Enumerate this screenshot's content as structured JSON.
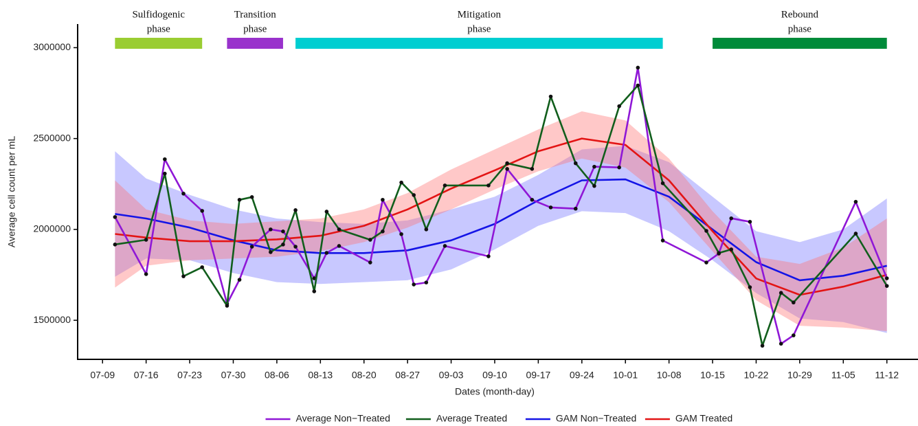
{
  "chart_data": {
    "type": "line",
    "x_label": "Dates (month-day)",
    "y_label": "Average cell count per mL",
    "xlim": [
      "07-05",
      "11-17"
    ],
    "xticks": [
      "07-09",
      "07-16",
      "07-23",
      "07-30",
      "08-06",
      "08-13",
      "08-20",
      "08-27",
      "09-03",
      "09-10",
      "09-17",
      "09-24",
      "10-01",
      "10-08",
      "10-15",
      "10-22",
      "10-29",
      "11-05",
      "11-12"
    ],
    "ylim": [
      1285000,
      3130000
    ],
    "yticks": [
      1500000,
      2000000,
      2500000,
      3000000
    ],
    "legend": "bottom",
    "phases": [
      {
        "label": [
          "Sulfidogenic",
          "phase"
        ],
        "start": "07-11",
        "end": "07-25",
        "color": "#9acd32"
      },
      {
        "label": [
          "Transition",
          "phase"
        ],
        "start": "07-29",
        "end": "08-07",
        "color": "#9932cc"
      },
      {
        "label": [
          "Mitigation",
          "phase"
        ],
        "start": "08-09",
        "end": "10-07",
        "color": "#00ced1"
      },
      {
        "label": [
          "Rebound",
          "phase"
        ],
        "start": "10-15",
        "end": "11-12",
        "color": "#008b3a"
      }
    ],
    "series": [
      {
        "name": "Average Non−Treated",
        "color": "#8f17d6",
        "points": true,
        "x": [
          "07-11",
          "07-16",
          "07-19",
          "07-22",
          "07-25",
          "07-29",
          "07-31",
          "08-02",
          "08-05",
          "08-07",
          "08-09",
          "08-12",
          "08-14",
          "08-16",
          "08-21",
          "08-23",
          "08-26",
          "08-28",
          "08-30",
          "09-02",
          "09-09",
          "09-12",
          "09-16",
          "09-19",
          "09-23",
          "09-26",
          "09-30",
          "10-03",
          "10-07",
          "10-14",
          "10-16",
          "10-18",
          "10-21",
          "10-26",
          "10-28",
          "11-07",
          "11-12"
        ],
        "values": [
          2068000,
          1754000,
          2386000,
          2197000,
          2102000,
          1591000,
          1723000,
          1905000,
          2000000,
          1989000,
          1905000,
          1731000,
          1871000,
          1909000,
          1818000,
          2163000,
          1974000,
          1697000,
          1708000,
          1909000,
          1852000,
          2333000,
          2163000,
          2121000,
          2114000,
          2345000,
          2341000,
          2890000,
          1939000,
          1818000,
          1867000,
          2061000,
          2042000,
          1371000,
          1417000,
          2152000,
          1731000
        ]
      },
      {
        "name": "Average Treated",
        "color": "#115e1c",
        "points": true,
        "x": [
          "07-11",
          "07-16",
          "07-19",
          "07-22",
          "07-25",
          "07-29",
          "07-31",
          "08-02",
          "08-05",
          "08-07",
          "08-09",
          "08-12",
          "08-14",
          "08-16",
          "08-21",
          "08-23",
          "08-26",
          "08-28",
          "08-30",
          "09-02",
          "09-09",
          "09-12",
          "09-16",
          "09-19",
          "09-23",
          "09-26",
          "09-30",
          "10-03",
          "10-07",
          "10-14",
          "10-16",
          "10-18",
          "10-21",
          "10-23",
          "10-26",
          "10-28",
          "11-07",
          "11-12"
        ],
        "values": [
          1917000,
          1943000,
          2307000,
          1742000,
          1792000,
          1580000,
          2163000,
          2178000,
          1875000,
          1917000,
          2106000,
          1659000,
          2098000,
          2000000,
          1943000,
          1989000,
          2258000,
          2189000,
          2000000,
          2242000,
          2242000,
          2364000,
          2333000,
          2731000,
          2364000,
          2239000,
          2678000,
          2792000,
          2254000,
          1992000,
          1870000,
          1890000,
          1682000,
          1360000,
          1651000,
          1598000,
          1977000,
          1689000
        ]
      },
      {
        "name": "GAM Non−Treated",
        "color": "#1414e6",
        "band_color": "rgba(110,110,255,0.38)",
        "x": [
          "07-11",
          "07-16",
          "07-23",
          "07-30",
          "08-06",
          "08-13",
          "08-20",
          "08-27",
          "09-03",
          "09-10",
          "09-17",
          "09-24",
          "10-01",
          "10-08",
          "10-15",
          "10-22",
          "10-29",
          "11-05",
          "11-12"
        ],
        "values": [
          2085000,
          2060000,
          2010000,
          1940000,
          1885000,
          1870000,
          1870000,
          1885000,
          1940000,
          2030000,
          2160000,
          2270000,
          2275000,
          2180000,
          2000000,
          1820000,
          1720000,
          1745000,
          1800000
        ],
        "lower": [
          1740000,
          1840000,
          1830000,
          1760000,
          1710000,
          1700000,
          1710000,
          1720000,
          1780000,
          1890000,
          2020000,
          2100000,
          2090000,
          1990000,
          1830000,
          1650000,
          1510000,
          1490000,
          1430000
        ],
        "upper": [
          2430000,
          2280000,
          2190000,
          2110000,
          2060000,
          2040000,
          2030000,
          2050000,
          2110000,
          2180000,
          2300000,
          2440000,
          2460000,
          2370000,
          2180000,
          1990000,
          1930000,
          2000000,
          2170000
        ]
      },
      {
        "name": "GAM Treated",
        "color": "#e31414",
        "band_color": "rgba(255,110,110,0.38)",
        "x": [
          "07-11",
          "07-16",
          "07-23",
          "07-30",
          "08-06",
          "08-13",
          "08-20",
          "08-27",
          "09-03",
          "09-10",
          "09-17",
          "09-24",
          "10-01",
          "10-08",
          "10-15",
          "10-22",
          "10-29",
          "11-05",
          "11-12"
        ],
        "values": [
          1975000,
          1955000,
          1935000,
          1935000,
          1945000,
          1965000,
          2020000,
          2110000,
          2225000,
          2325000,
          2430000,
          2500000,
          2465000,
          2270000,
          1990000,
          1730000,
          1640000,
          1685000,
          1750000
        ],
        "lower": [
          1680000,
          1800000,
          1830000,
          1840000,
          1850000,
          1880000,
          1930000,
          2010000,
          2110000,
          2220000,
          2320000,
          2390000,
          2340000,
          2150000,
          1880000,
          1610000,
          1470000,
          1460000,
          1440000
        ],
        "upper": [
          2270000,
          2110000,
          2050000,
          2030000,
          2045000,
          2060000,
          2110000,
          2200000,
          2330000,
          2440000,
          2550000,
          2650000,
          2600000,
          2390000,
          2100000,
          1850000,
          1810000,
          1900000,
          2060000
        ]
      }
    ]
  }
}
